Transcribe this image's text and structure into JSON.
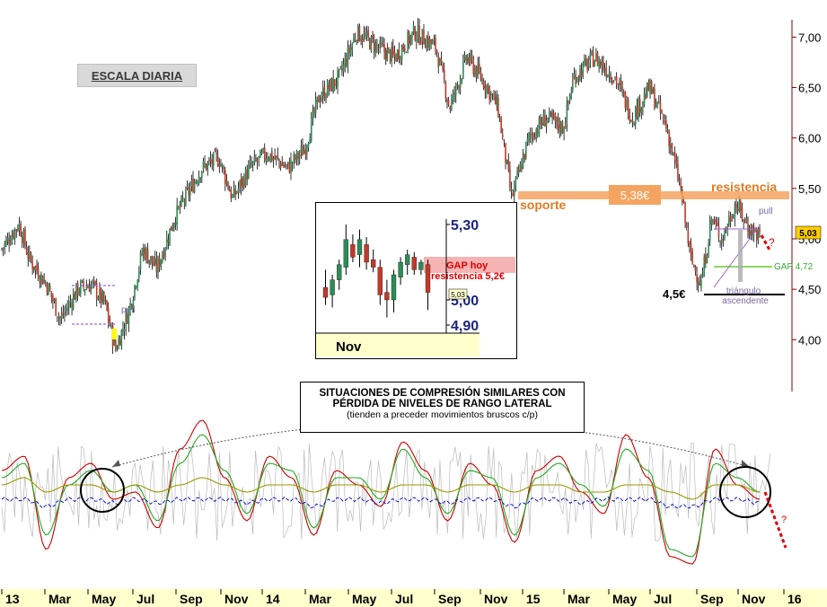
{
  "title_badge": "ESCALA DIARIA",
  "note": {
    "line1": "SITUACIONES DE COMPRESIÓN SIMILARES CON",
    "line2": "PÉRDIDA DE NIVELES DE RANGO LATERAL",
    "line3": "(tienden a preceder movimientos bruscos c/p)"
  },
  "colors": {
    "candle_up": "#2e8b57",
    "candle_down": "#c0392b",
    "axis": "#8b0000",
    "orange": "#f4a460",
    "orange_text": "#e07b24",
    "gap_green": "#66cc33",
    "osc_red": "#cc0000",
    "osc_green": "#22aa22",
    "osc_olive": "#999900",
    "osc_blue": "#0000cc",
    "osc_gray": "#bbbbbb",
    "purple": "#9966cc",
    "xaxis_band": "#ffffcc"
  },
  "chart_data": [
    {
      "type": "candlestick",
      "title": "ESCALA DIARIA",
      "y_ticks": [
        "7,00",
        "6,50",
        "6,00",
        "5,50",
        "5,00",
        "4,50",
        "4,00"
      ],
      "y_tick_values": [
        7.0,
        6.5,
        6.0,
        5.5,
        5.0,
        4.5,
        4.0
      ],
      "ylim": [
        3.7,
        7.35
      ],
      "last_price": "5,03",
      "x_ticks": [
        "13",
        "Mar",
        "May",
        "Jul",
        "Sep",
        "Nov",
        "14",
        "Mar",
        "May",
        "Jul",
        "Sep",
        "Nov",
        "15",
        "Mar",
        "May",
        "Jul",
        "Sep",
        "Nov",
        "16"
      ],
      "price_path": [
        {
          "t": 0.0,
          "v": 4.9
        },
        {
          "t": 0.5,
          "v": 5.15
        },
        {
          "t": 0.8,
          "v": 4.8
        },
        {
          "t": 1.3,
          "v": 4.55
        },
        {
          "t": 1.7,
          "v": 4.2
        },
        {
          "t": 2.2,
          "v": 4.5
        },
        {
          "t": 2.6,
          "v": 4.55
        },
        {
          "t": 3.0,
          "v": 4.35
        },
        {
          "t": 3.3,
          "v": 3.9
        },
        {
          "t": 3.7,
          "v": 4.3
        },
        {
          "t": 4.1,
          "v": 4.9
        },
        {
          "t": 4.5,
          "v": 4.7
        },
        {
          "t": 5.0,
          "v": 5.2
        },
        {
          "t": 5.4,
          "v": 5.45
        },
        {
          "t": 5.8,
          "v": 5.7
        },
        {
          "t": 6.3,
          "v": 5.8
        },
        {
          "t": 6.7,
          "v": 5.4
        },
        {
          "t": 7.2,
          "v": 5.7
        },
        {
          "t": 7.7,
          "v": 5.85
        },
        {
          "t": 8.3,
          "v": 5.7
        },
        {
          "t": 8.8,
          "v": 5.9
        },
        {
          "t": 9.2,
          "v": 6.4
        },
        {
          "t": 9.8,
          "v": 6.6
        },
        {
          "t": 10.3,
          "v": 7.05
        },
        {
          "t": 10.9,
          "v": 6.9
        },
        {
          "t": 11.4,
          "v": 6.8
        },
        {
          "t": 12.0,
          "v": 7.05
        },
        {
          "t": 12.6,
          "v": 6.9
        },
        {
          "t": 13.0,
          "v": 6.3
        },
        {
          "t": 13.5,
          "v": 6.8
        },
        {
          "t": 14.1,
          "v": 6.5
        },
        {
          "t": 14.4,
          "v": 6.3
        },
        {
          "t": 14.8,
          "v": 5.4
        },
        {
          "t": 15.3,
          "v": 6.0
        },
        {
          "t": 15.8,
          "v": 6.2
        },
        {
          "t": 16.3,
          "v": 6.1
        },
        {
          "t": 16.6,
          "v": 6.6
        },
        {
          "t": 17.2,
          "v": 6.8
        },
        {
          "t": 17.8,
          "v": 6.6
        },
        {
          "t": 18.3,
          "v": 6.2
        },
        {
          "t": 18.8,
          "v": 6.5
        },
        {
          "t": 19.3,
          "v": 6.1
        },
        {
          "t": 19.7,
          "v": 5.5
        },
        {
          "t": 20.0,
          "v": 4.8
        },
        {
          "t": 20.3,
          "v": 4.55
        },
        {
          "t": 20.6,
          "v": 5.2
        },
        {
          "t": 20.9,
          "v": 5.0
        },
        {
          "t": 21.3,
          "v": 5.35
        },
        {
          "t": 21.7,
          "v": 5.1
        },
        {
          "t": 22.0,
          "v": 5.03
        }
      ],
      "annotations": {
        "resistencia_label": "resistencia",
        "soporte_label": "soporte",
        "level_label": "5,38€",
        "level_value": 5.38,
        "pull_left": "pull",
        "pull_right": "pull",
        "support_label": "4,5€",
        "support_value": 4.5,
        "gap_label": "GAP 4,72",
        "gap_value": 4.72,
        "triangle_line1": "triángulo",
        "triangle_line2": "ascendente",
        "question_mark": "?"
      }
    },
    {
      "type": "candlestick",
      "y_ticks": [
        "5,30",
        "5,00",
        "4,90"
      ],
      "y_tick_values": [
        5.3,
        5.0,
        4.9
      ],
      "x_label": "Nov",
      "gap_text1": "GAP hoy",
      "gap_text2": "resistencia 5,2€",
      "last_price": "5,03",
      "candles": [
        {
          "o": 5.05,
          "h": 5.12,
          "l": 4.98,
          "c": 5.01
        },
        {
          "o": 5.02,
          "h": 5.1,
          "l": 4.97,
          "c": 5.08
        },
        {
          "o": 5.08,
          "h": 5.16,
          "l": 5.04,
          "c": 5.14
        },
        {
          "o": 5.13,
          "h": 5.3,
          "l": 5.1,
          "c": 5.24
        },
        {
          "o": 5.22,
          "h": 5.26,
          "l": 5.15,
          "c": 5.17
        },
        {
          "o": 5.18,
          "h": 5.28,
          "l": 5.13,
          "c": 5.24
        },
        {
          "o": 5.22,
          "h": 5.25,
          "l": 5.12,
          "c": 5.15
        },
        {
          "o": 5.16,
          "h": 5.2,
          "l": 5.11,
          "c": 5.13
        },
        {
          "o": 5.13,
          "h": 5.16,
          "l": 4.98,
          "c": 5.02
        },
        {
          "o": 5.03,
          "h": 5.08,
          "l": 4.93,
          "c": 5.0
        },
        {
          "o": 5.0,
          "h": 5.12,
          "l": 4.95,
          "c": 5.1
        },
        {
          "o": 5.09,
          "h": 5.17,
          "l": 5.06,
          "c": 5.15
        },
        {
          "o": 5.14,
          "h": 5.2,
          "l": 5.1,
          "c": 5.18
        },
        {
          "o": 5.17,
          "h": 5.19,
          "l": 5.1,
          "c": 5.12
        },
        {
          "o": 5.12,
          "h": 5.16,
          "l": 5.1,
          "c": 5.15
        },
        {
          "o": 5.14,
          "h": 5.16,
          "l": 4.96,
          "c": 5.03
        }
      ]
    },
    {
      "type": "line",
      "series": [
        {
          "color": "red",
          "values": [
            0.3,
            0.5,
            -0.8,
            0.2,
            0.4,
            -0.1,
            0.0,
            -0.5,
            0.6,
            1.0,
            0.2,
            -0.4,
            0.5,
            0.2,
            -0.6,
            0.3,
            0.1,
            -0.2,
            0.7,
            0.3,
            -0.4,
            0.4,
            0.1,
            -0.7,
            0.3,
            0.5,
            0.0,
            -0.3,
            0.8,
            0.2,
            -0.9,
            -1.0,
            0.6,
            0.1,
            -0.1
          ]
        },
        {
          "color": "green",
          "values": [
            0.2,
            0.4,
            -0.6,
            0.1,
            0.3,
            0.0,
            0.1,
            -0.4,
            0.4,
            0.8,
            0.3,
            -0.3,
            0.4,
            0.3,
            -0.5,
            0.2,
            0.2,
            -0.1,
            0.6,
            0.2,
            -0.3,
            0.3,
            0.2,
            -0.6,
            0.2,
            0.4,
            0.1,
            -0.2,
            0.6,
            0.3,
            -0.8,
            -0.9,
            0.4,
            0.2,
            0.0
          ]
        },
        {
          "color": "olive",
          "values": [
            0.1,
            0.2,
            0.0,
            0.1,
            0.1,
            0.0,
            0.1,
            0.0,
            0.1,
            0.2,
            0.1,
            0.0,
            0.1,
            0.1,
            0.0,
            0.1,
            0.1,
            0.0,
            0.1,
            0.1,
            0.0,
            0.1,
            0.1,
            0.0,
            0.1,
            0.1,
            0.0,
            0.0,
            0.1,
            0.1,
            0.0,
            -0.1,
            0.1,
            0.1,
            0.0
          ]
        },
        {
          "color": "blue",
          "values": [
            -0.1,
            -0.1,
            -0.2,
            -0.1,
            -0.1,
            -0.15,
            -0.1,
            -0.15,
            -0.1,
            -0.1,
            -0.1,
            -0.15,
            -0.1,
            -0.1,
            -0.2,
            -0.1,
            -0.1,
            -0.15,
            -0.1,
            -0.1,
            -0.15,
            -0.1,
            -0.1,
            -0.2,
            -0.1,
            -0.1,
            -0.15,
            -0.1,
            -0.1,
            -0.1,
            -0.2,
            -0.2,
            -0.1,
            -0.1,
            -0.15
          ]
        }
      ],
      "question_mark": "?"
    }
  ]
}
